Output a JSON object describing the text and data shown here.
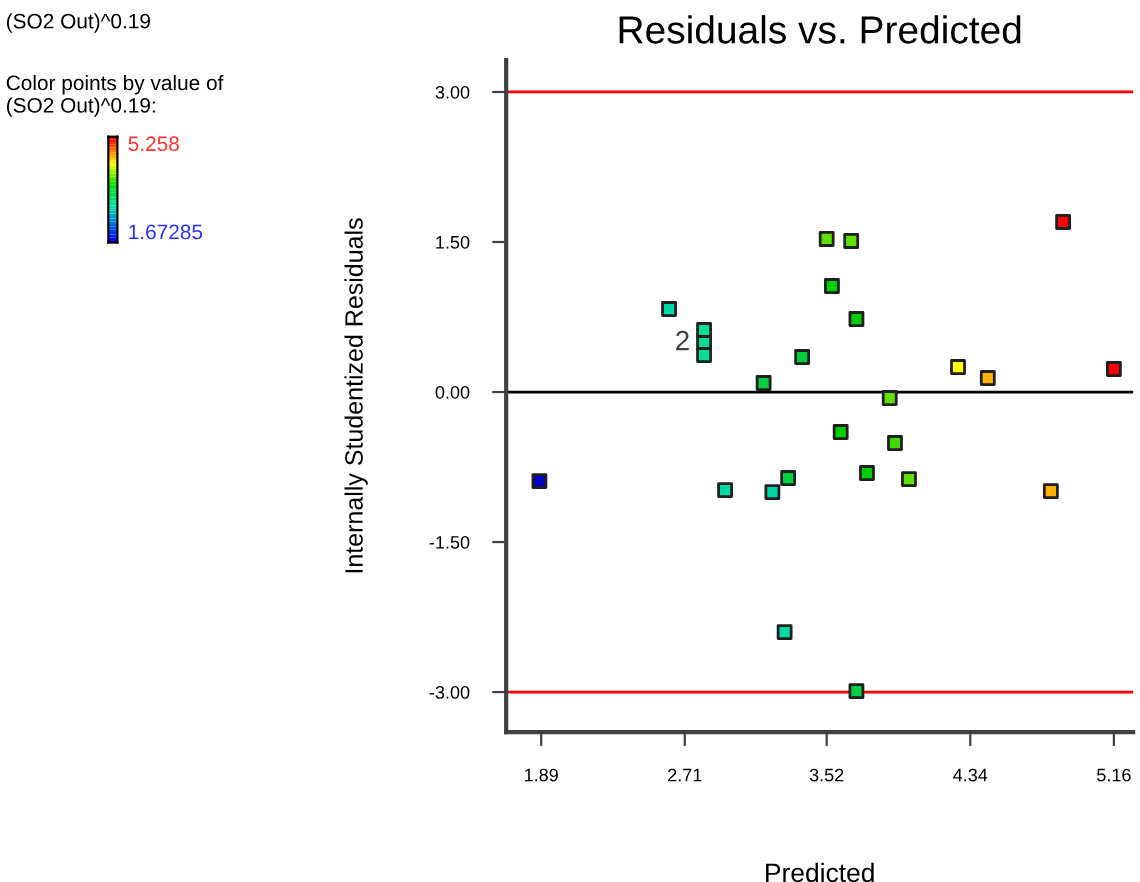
{
  "chart_data": {
    "type": "scatter",
    "title": "Residuals vs. Predicted",
    "xlabel": "Predicted",
    "ylabel": "Internally Studentized Residuals",
    "x": [
      1.88,
      2.62,
      2.82,
      2.82,
      2.82,
      3.16,
      3.38,
      3.52,
      3.66,
      3.55,
      3.69,
      3.88,
      3.6,
      3.91,
      3.75,
      3.99,
      3.3,
      3.21,
      2.94,
      4.27,
      4.44,
      4.87,
      5.16,
      4.8,
      3.28,
      3.69
    ],
    "values": [
      -0.89,
      0.83,
      0.62,
      0.49,
      0.37,
      0.09,
      0.35,
      1.53,
      1.51,
      1.06,
      0.73,
      -0.06,
      -0.4,
      -0.51,
      -0.81,
      -0.87,
      -0.86,
      -1.0,
      -0.98,
      0.25,
      0.14,
      1.7,
      0.23,
      -0.99,
      -2.4,
      -2.99
    ],
    "colors": [
      "#0000c0",
      "#00d8a8",
      "#00e090",
      "#00e090",
      "#00e090",
      "#00d040",
      "#00d040",
      "#60e000",
      "#60e000",
      "#00d000",
      "#00d000",
      "#60e000",
      "#00d000",
      "#40d800",
      "#00d000",
      "#60e000",
      "#00d040",
      "#00d8a8",
      "#00d8a8",
      "#ffff00",
      "#ffb000",
      "#ff0000",
      "#ff0000",
      "#ffb000",
      "#00d8a8",
      "#00d040"
    ],
    "marker": "square",
    "grid": false,
    "legend": false,
    "xlim": [
      1.69,
      5.27
    ],
    "xticks": [
      1.89,
      2.71,
      3.52,
      4.34,
      5.16
    ],
    "ylim": [
      -3.4,
      3.32
    ],
    "yticks": [
      {
        "value": 3,
        "label": "3.00"
      },
      {
        "value": 1.5,
        "label": "1.50"
      },
      {
        "value": 0,
        "label": "0.00"
      },
      {
        "value": -1.5,
        "label": "-1.50"
      },
      {
        "value": -3,
        "label": "-3.00"
      }
    ],
    "ref_lines": [
      {
        "axis": "y",
        "value": 3,
        "color": "#ff0000"
      },
      {
        "axis": "y",
        "value": 0,
        "color": "#000000"
      },
      {
        "axis": "y",
        "value": -3,
        "color": "#ff0000"
      }
    ],
    "annotations": [
      "(SO2 Out)^0.19",
      "Color points by value of\n(SO2 Out)^0.19:",
      "5.258",
      "1.67285",
      {
        "text": "2",
        "x": 2.82,
        "y": 0.49
      }
    ]
  }
}
